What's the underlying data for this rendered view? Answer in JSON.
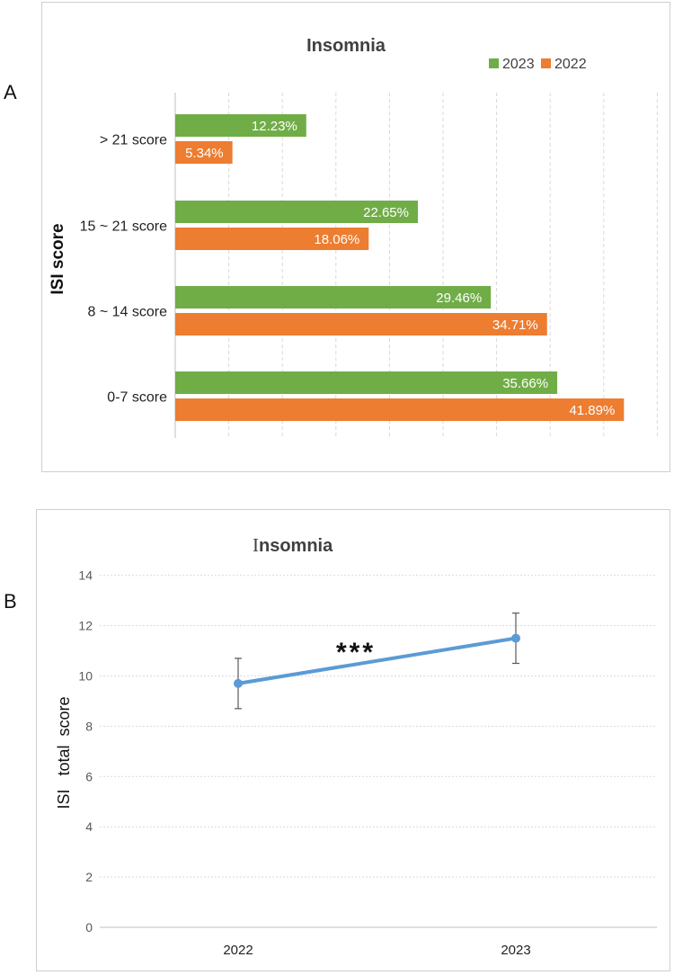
{
  "labels": {
    "panel_a": "A",
    "panel_b": "B"
  },
  "colors": {
    "green": "#70AD47",
    "orange": "#ED7D31",
    "line": "#5B9BD5",
    "grid": "#D9D9D9",
    "axis": "#BFBFBF",
    "text": "#222222",
    "tick_text": "#595959"
  },
  "chart_data": [
    {
      "type": "bar",
      "orientation": "horizontal",
      "title": "Insomnia",
      "ylabel": "ISI score",
      "xlabel": "",
      "legend_position": "top-right",
      "categories": [
        "> 21 score",
        "15 ~ 21 score",
        "8 ~ 14 score",
        "0-7 score"
      ],
      "xlim": [
        0,
        45
      ],
      "grid": true,
      "series": [
        {
          "name": "2023",
          "color_key": "green",
          "values": [
            12.23,
            22.65,
            29.46,
            35.66
          ],
          "labels": [
            "12.23%",
            "22.65%",
            "29.46%",
            "35.66%"
          ]
        },
        {
          "name": "2022",
          "color_key": "orange",
          "values": [
            5.34,
            18.06,
            34.71,
            41.89
          ],
          "labels": [
            "5.34%",
            "18.06%",
            "34.71%",
            "41.89%"
          ]
        }
      ]
    },
    {
      "type": "line",
      "title": "Insomnia",
      "title_first_letter": "I",
      "title_rest": "nsomnia",
      "ylabel": "ISI   total  score",
      "xlabel": "",
      "x": [
        "2022",
        "2023"
      ],
      "y": [
        9.7,
        11.5
      ],
      "error": [
        1.0,
        1.0
      ],
      "ylim": [
        0,
        14
      ],
      "yticks": [
        0,
        2,
        4,
        6,
        8,
        10,
        12,
        14
      ],
      "grid": true,
      "annotation": "***"
    }
  ]
}
